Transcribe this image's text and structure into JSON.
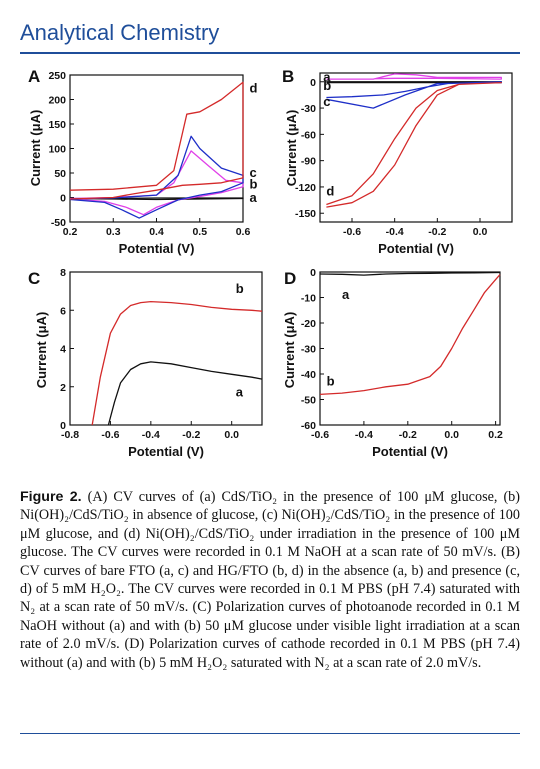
{
  "header": {
    "journal": "Analytical Chemistry"
  },
  "colors": {
    "red": "#d42a2a",
    "blue": "#1e2fc8",
    "magenta": "#e040e8",
    "black": "#111111",
    "brand": "#1f4e9a"
  },
  "caption": {
    "label": "Figure 2.",
    "text": "(A) CV curves of (a) CdS/TiO₂ in the presence of 100 μM glucose, (b) Ni(OH)₂/CdS/TiO₂ in absence of glucose, (c) Ni(OH)₂/CdS/TiO₂ in the presence of 100 μM glucose, and (d) Ni(OH)₂/CdS/TiO₂ under irradiation in the presence of 100 μM glucose. The CV curves were recorded in 0.1 M NaOH at a scan rate of 50 mV/s. (B) CV curves of bare FTO (a, c) and HG/FTO (b, d) in the absence (a, b) and presence (c, d) of 5 mM H₂O₂. The CV curves were recorded in 0.1 M PBS (pH 7.4) saturated with N₂ at a scan rate of 50 mV/s. (C) Polarization curves of photoanode recorded in 0.1 M NaOH without (a) and with (b) 50 μM glucose under visible light irradiation at a scan rate of 2.0 mV/s. (D) Polarization curves of cathode recorded in 0.1 M PBS (pH 7.4) without (a) and with (b) 5 mM H₂O₂ saturated with N₂ at a scan rate of 2.0 mV/s."
  },
  "chart_data": [
    {
      "panel": "A",
      "type": "line",
      "xlabel": "Potential (V)",
      "ylabel": "Current (μA)",
      "xlim": [
        0.2,
        0.6
      ],
      "ylim": [
        -50,
        250
      ],
      "xticks": [
        "0.2",
        "0.3",
        "0.4",
        "0.5",
        "0.6"
      ],
      "yticks": [
        "-50",
        "0",
        "50",
        "100",
        "150",
        "200",
        "250"
      ],
      "series": [
        {
          "name": "a",
          "color": "black",
          "x": [
            0.2,
            0.3,
            0.4,
            0.5,
            0.6,
            0.6,
            0.5,
            0.4,
            0.3,
            0.2
          ],
          "y": [
            -2,
            -2,
            -1,
            -1,
            -1,
            -2,
            -3,
            -4,
            -3,
            -2
          ]
        },
        {
          "name": "b",
          "color": "magenta",
          "x": [
            0.2,
            0.3,
            0.4,
            0.44,
            0.48,
            0.52,
            0.56,
            0.6,
            0.6,
            0.55,
            0.5,
            0.45,
            0.4,
            0.37,
            0.33,
            0.28,
            0.2
          ],
          "y": [
            -2,
            0,
            5,
            30,
            95,
            65,
            35,
            30,
            22,
            10,
            2,
            -5,
            -20,
            -35,
            -20,
            -8,
            -3
          ]
        },
        {
          "name": "c",
          "color": "blue",
          "x": [
            0.2,
            0.3,
            0.4,
            0.45,
            0.48,
            0.5,
            0.55,
            0.6,
            0.6,
            0.55,
            0.5,
            0.45,
            0.4,
            0.36,
            0.32,
            0.28,
            0.2
          ],
          "y": [
            -3,
            -1,
            5,
            45,
            125,
            100,
            60,
            45,
            30,
            12,
            5,
            -5,
            -25,
            -42,
            -25,
            -10,
            -4
          ]
        },
        {
          "name": "d",
          "color": "red",
          "x": [
            0.2,
            0.3,
            0.4,
            0.44,
            0.47,
            0.5,
            0.55,
            0.6,
            0.6,
            0.55,
            0.5,
            0.46,
            0.4,
            0.35,
            0.3,
            0.2
          ],
          "y": [
            15,
            17,
            25,
            55,
            170,
            175,
            200,
            235,
            40,
            30,
            27,
            25,
            15,
            8,
            0,
            -3
          ]
        }
      ],
      "labels": [
        {
          "t": "a",
          "x": 0.615,
          "y": -1
        },
        {
          "t": "b",
          "x": 0.615,
          "y": 27
        },
        {
          "t": "c",
          "x": 0.615,
          "y": 50
        },
        {
          "t": "d",
          "x": 0.615,
          "y": 222
        }
      ]
    },
    {
      "panel": "B",
      "type": "line",
      "xlabel": "Potential (V)",
      "ylabel": "Current (μA)",
      "xlim": [
        -0.75,
        0.15
      ],
      "ylim": [
        -160,
        10
      ],
      "xticks": [
        "-0.6",
        "-0.4",
        "-0.2",
        "0.0"
      ],
      "yticks": [
        "0",
        "-30",
        "-60",
        "-90",
        "-120",
        "-150"
      ],
      "series": [
        {
          "name": "a",
          "color": "magenta",
          "x": [
            -0.72,
            -0.5,
            -0.4,
            -0.3,
            -0.2,
            0.1,
            0.1,
            -0.2,
            -0.4,
            -0.6,
            -0.72
          ],
          "y": [
            3,
            3,
            9,
            8,
            5,
            5,
            3,
            4,
            4,
            3,
            3
          ]
        },
        {
          "name": "b",
          "color": "black",
          "x": [
            -0.72,
            -0.4,
            -0.2,
            0.1,
            0.1,
            -0.2,
            -0.4,
            -0.72
          ],
          "y": [
            0,
            0,
            0,
            0,
            -1,
            -1,
            -1,
            -1
          ]
        },
        {
          "name": "c",
          "color": "blue",
          "x": [
            -0.72,
            -0.6,
            -0.45,
            -0.35,
            -0.25,
            -0.15,
            0.1,
            0.1,
            -0.2,
            -0.35,
            -0.5,
            -0.72
          ],
          "y": [
            -18,
            -17,
            -15,
            -11,
            -6,
            -2,
            0,
            -1,
            -2,
            -15,
            -30,
            -20
          ]
        },
        {
          "name": "d",
          "color": "red",
          "x": [
            -0.72,
            -0.6,
            -0.5,
            -0.4,
            -0.3,
            -0.2,
            -0.1,
            0.1,
            0.1,
            -0.1,
            -0.2,
            -0.3,
            -0.4,
            -0.5,
            -0.6,
            -0.72
          ],
          "y": [
            -140,
            -130,
            -105,
            -65,
            -30,
            -10,
            -3,
            -1,
            -1,
            -3,
            -15,
            -50,
            -95,
            -125,
            -138,
            -143
          ]
        }
      ],
      "labels": [
        {
          "t": "a",
          "x": -0.735,
          "y": 5
        },
        {
          "t": "b",
          "x": -0.735,
          "y": -5
        },
        {
          "t": "c",
          "x": -0.735,
          "y": -23
        },
        {
          "t": "d",
          "x": -0.72,
          "y": -125
        }
      ]
    },
    {
      "panel": "C",
      "type": "line",
      "xlabel": "Potential (V)",
      "ylabel": "Current (μA)",
      "xlim": [
        -0.8,
        0.15
      ],
      "ylim": [
        0,
        8
      ],
      "xticks": [
        "-0.8",
        "-0.6",
        "-0.4",
        "-0.2",
        "0.0"
      ],
      "yticks": [
        "0",
        "2",
        "4",
        "6",
        "8"
      ],
      "series": [
        {
          "name": "a",
          "color": "black",
          "x": [
            -0.61,
            -0.58,
            -0.55,
            -0.5,
            -0.45,
            -0.4,
            -0.3,
            -0.2,
            -0.1,
            0.0,
            0.1,
            0.15
          ],
          "y": [
            0,
            1.2,
            2.2,
            2.9,
            3.2,
            3.3,
            3.2,
            3.0,
            2.8,
            2.65,
            2.5,
            2.4
          ]
        },
        {
          "name": "b",
          "color": "red",
          "x": [
            -0.69,
            -0.65,
            -0.6,
            -0.55,
            -0.5,
            -0.45,
            -0.4,
            -0.3,
            -0.2,
            -0.1,
            0.0,
            0.1,
            0.15
          ],
          "y": [
            0,
            2.5,
            4.8,
            5.8,
            6.25,
            6.4,
            6.45,
            6.4,
            6.3,
            6.15,
            6.05,
            6.0,
            5.95
          ]
        }
      ],
      "labels": [
        {
          "t": "b",
          "x": 0.02,
          "y": 7.1
        },
        {
          "t": "a",
          "x": 0.02,
          "y": 1.7
        }
      ]
    },
    {
      "panel": "D",
      "type": "line",
      "xlabel": "Potential (V)",
      "ylabel": "Current (μA)",
      "xlim": [
        -0.6,
        0.22
      ],
      "ylim": [
        -60,
        0
      ],
      "xticks": [
        "-0.6",
        "-0.4",
        "-0.2",
        "0.0",
        "0.2"
      ],
      "yticks": [
        "0",
        "-10",
        "-20",
        "-30",
        "-40",
        "-50",
        "-60"
      ],
      "series": [
        {
          "name": "a",
          "color": "black",
          "x": [
            -0.6,
            -0.5,
            -0.4,
            -0.3,
            -0.2,
            -0.1,
            0.0,
            0.1,
            0.22
          ],
          "y": [
            -0.8,
            -0.9,
            -1.2,
            -0.8,
            -0.6,
            -0.5,
            -0.4,
            -0.3,
            -0.2
          ]
        },
        {
          "name": "b",
          "color": "red",
          "x": [
            -0.6,
            -0.5,
            -0.4,
            -0.3,
            -0.2,
            -0.1,
            -0.05,
            0.0,
            0.05,
            0.1,
            0.15,
            0.2,
            0.22
          ],
          "y": [
            -48,
            -47.5,
            -46.5,
            -45,
            -44,
            -41,
            -37,
            -30,
            -22,
            -15,
            -8,
            -3,
            -1
          ]
        }
      ],
      "labels": [
        {
          "t": "a",
          "x": -0.5,
          "y": -9
        },
        {
          "t": "b",
          "x": -0.57,
          "y": -43
        }
      ]
    }
  ]
}
